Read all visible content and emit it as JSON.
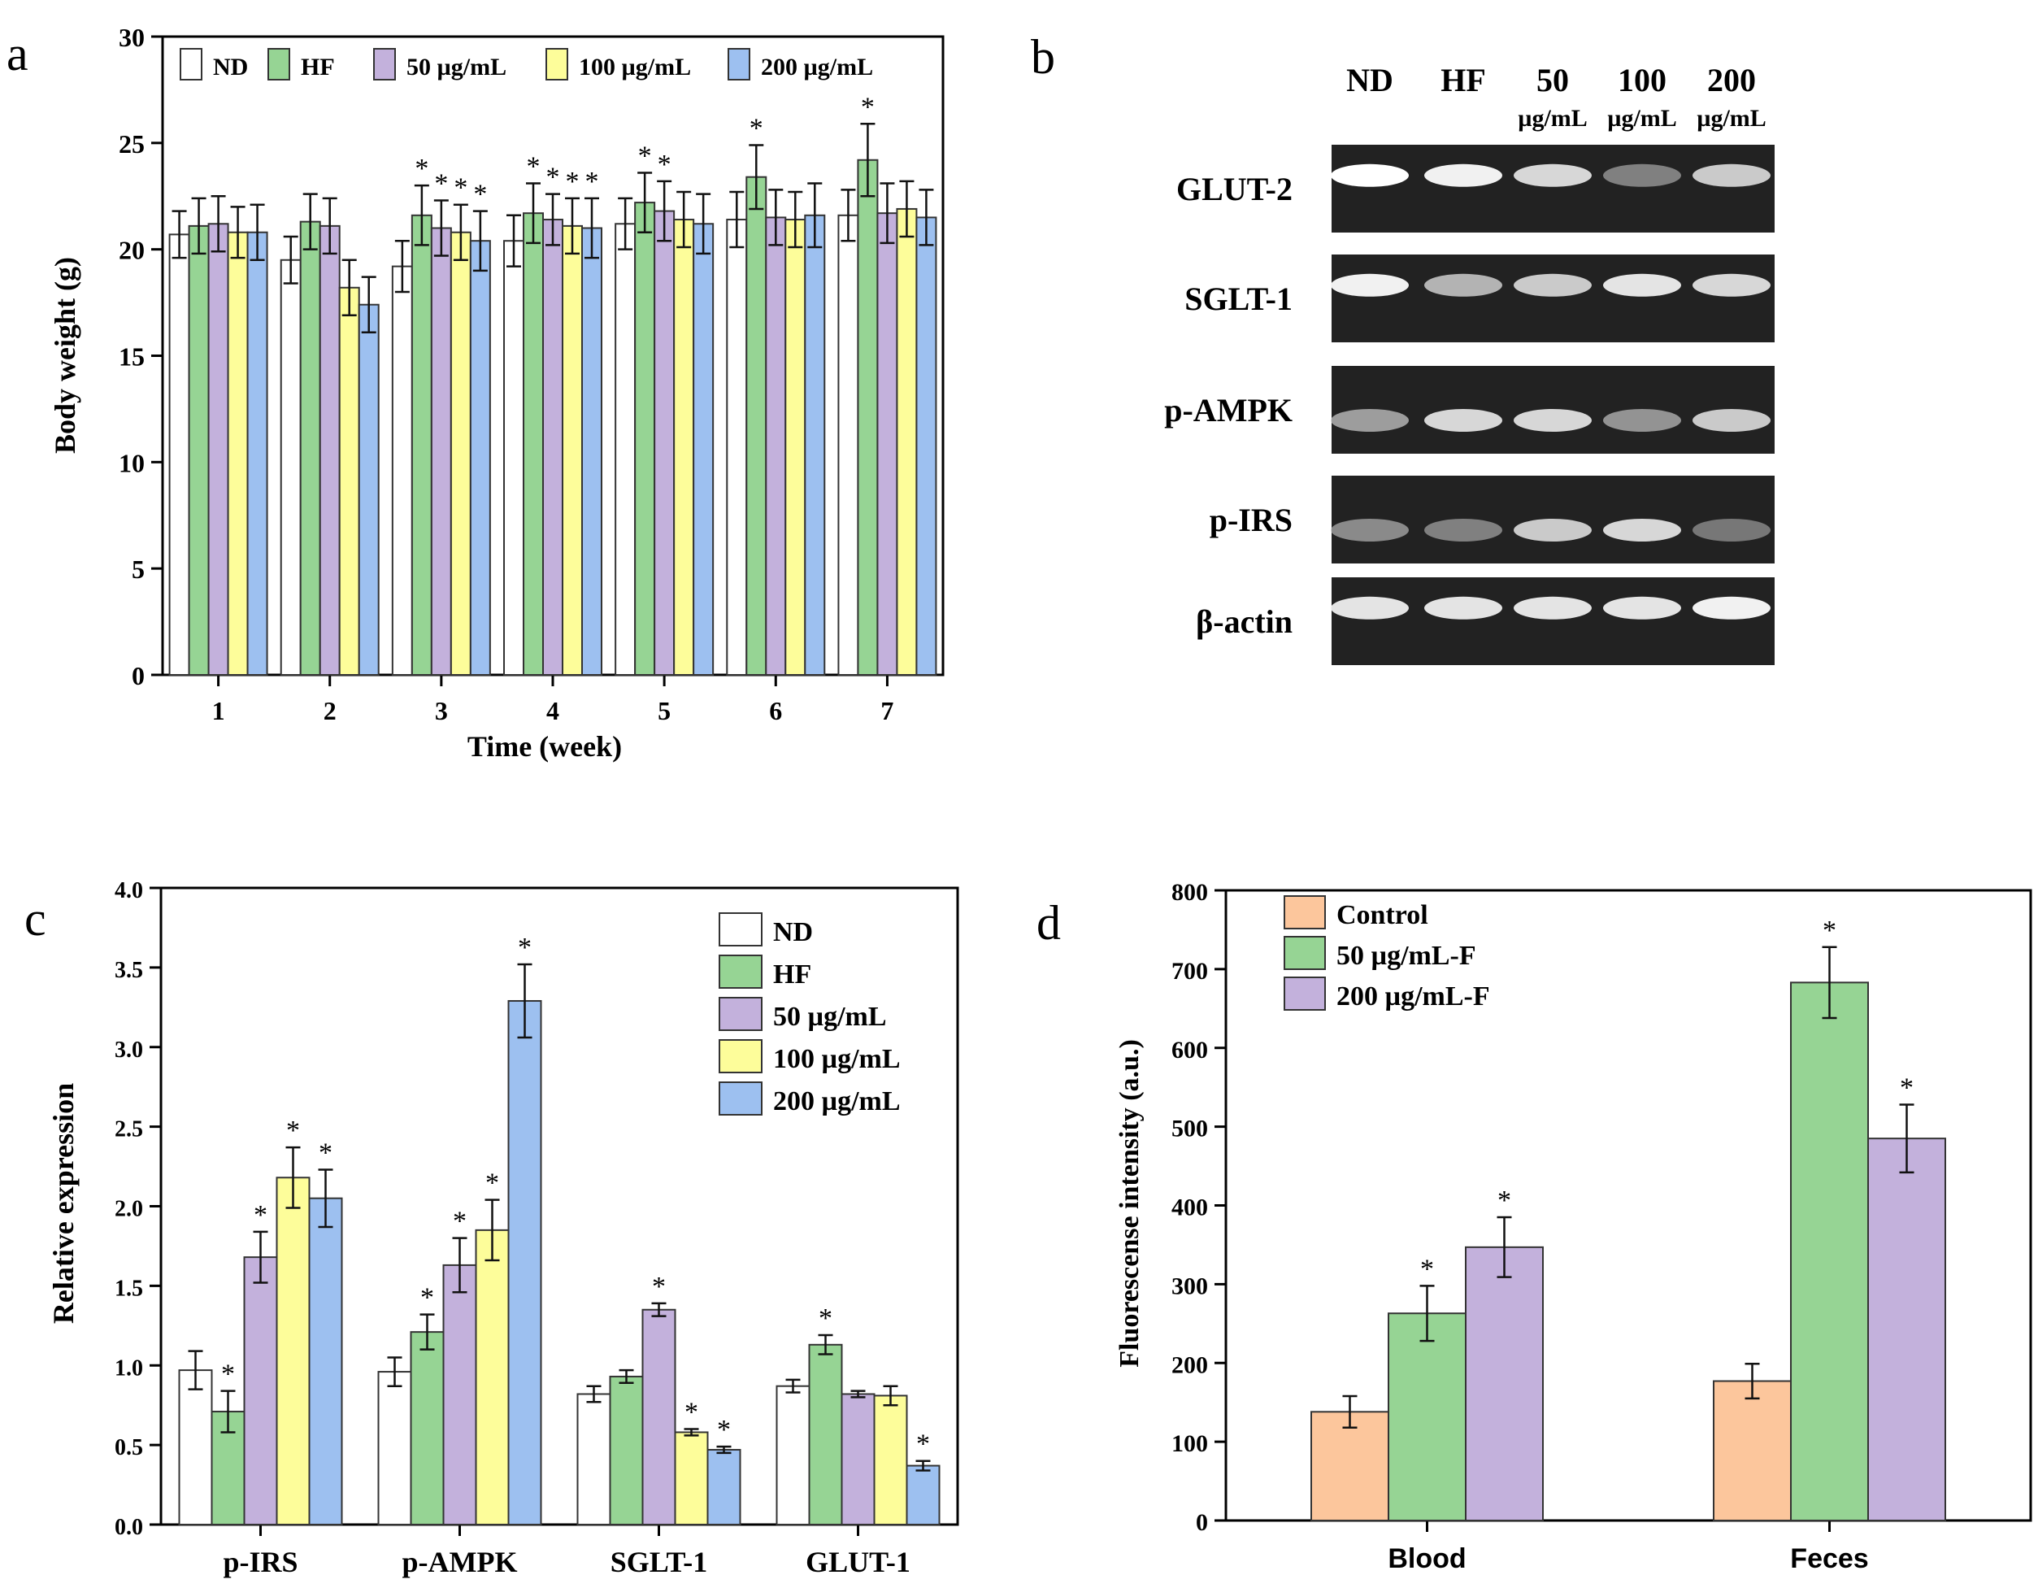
{
  "colors": {
    "ND": "#ffffff",
    "HF": "#96d494",
    "50ug": "#c3b1dc",
    "100ug": "#fdfd9a",
    "200ug": "#9dc0f0",
    "orange": "#fcc69c"
  },
  "panel_a": {
    "label": "a",
    "ylabel": "Body weight (g)",
    "xlabel": "Time (week)",
    "legend": [
      "ND",
      "HF",
      "50 µg/mL",
      "100 µg/mL",
      "200 µg/mL"
    ]
  },
  "panel_b": {
    "label": "b",
    "lanes": [
      {
        "top": "ND",
        "bottom": ""
      },
      {
        "top": "HF",
        "bottom": ""
      },
      {
        "top": "50",
        "bottom": "µg/mL"
      },
      {
        "top": "100",
        "bottom": "µg/mL"
      },
      {
        "top": "200",
        "bottom": "µg/mL"
      }
    ],
    "rows": [
      "GLUT-2",
      "SGLT-1",
      "p-AMPK",
      "p-IRS",
      "β-actin"
    ],
    "band_intensity": [
      [
        1.0,
        0.95,
        0.85,
        0.45,
        0.8
      ],
      [
        0.95,
        0.7,
        0.8,
        0.9,
        0.85
      ],
      [
        0.6,
        0.85,
        0.85,
        0.55,
        0.8
      ],
      [
        0.5,
        0.45,
        0.8,
        0.85,
        0.4
      ],
      [
        0.9,
        0.9,
        0.9,
        0.9,
        0.95
      ]
    ]
  },
  "panel_c": {
    "label": "c",
    "ylabel": "Relative expression"
  },
  "panel_d": {
    "label": "d",
    "ylabel": "Fluorescense intensity (a.u.)"
  },
  "chart_data": [
    {
      "id": "a",
      "type": "bar",
      "title": "",
      "xlabel": "Time (week)",
      "ylabel": "Body weight (g)",
      "ylim": [
        0,
        30
      ],
      "yticks": [
        "0",
        "5",
        "10",
        "15",
        "20",
        "25",
        "30"
      ],
      "categories": [
        "1",
        "2",
        "3",
        "4",
        "5",
        "6",
        "7"
      ],
      "series": [
        {
          "name": "ND",
          "values": [
            20.7,
            19.5,
            19.2,
            20.4,
            21.2,
            21.4,
            21.6
          ],
          "errors": [
            1.1,
            1.1,
            1.2,
            1.2,
            1.2,
            1.3,
            1.2
          ],
          "stars": [
            false,
            false,
            false,
            false,
            false,
            false,
            false
          ]
        },
        {
          "name": "HF",
          "values": [
            21.1,
            21.3,
            21.6,
            21.7,
            22.2,
            23.4,
            24.2
          ],
          "errors": [
            1.3,
            1.3,
            1.4,
            1.4,
            1.4,
            1.5,
            1.7
          ],
          "stars": [
            false,
            false,
            true,
            true,
            true,
            true,
            true
          ]
        },
        {
          "name": "50 µg/mL",
          "values": [
            21.2,
            21.1,
            21.0,
            21.4,
            21.8,
            21.5,
            21.7
          ],
          "errors": [
            1.3,
            1.3,
            1.3,
            1.2,
            1.4,
            1.3,
            1.4
          ],
          "stars": [
            false,
            false,
            true,
            true,
            true,
            false,
            false
          ]
        },
        {
          "name": "100 µg/mL",
          "values": [
            20.8,
            18.2,
            20.8,
            21.1,
            21.4,
            21.4,
            21.9
          ],
          "errors": [
            1.2,
            1.3,
            1.3,
            1.3,
            1.3,
            1.3,
            1.3
          ],
          "stars": [
            false,
            false,
            true,
            true,
            false,
            false,
            false
          ]
        },
        {
          "name": "200 µg/mL",
          "values": [
            20.8,
            17.4,
            20.4,
            21.0,
            21.2,
            21.6,
            21.5
          ],
          "errors": [
            1.3,
            1.3,
            1.4,
            1.4,
            1.4,
            1.5,
            1.3
          ],
          "stars": [
            false,
            false,
            true,
            true,
            false,
            false,
            false
          ]
        }
      ]
    },
    {
      "id": "c",
      "type": "bar",
      "title": "",
      "xlabel": "",
      "ylabel": "Relative expression",
      "ylim": [
        0,
        4
      ],
      "yticks": [
        "0.0",
        "0.5",
        "1.0",
        "1.5",
        "2.0",
        "2.5",
        "3.0",
        "3.5",
        "4.0"
      ],
      "categories": [
        "p-IRS",
        "p-AMPK",
        "SGLT-1",
        "GLUT-1"
      ],
      "series": [
        {
          "name": "ND",
          "values": [
            0.97,
            0.96,
            0.82,
            0.87
          ],
          "errors": [
            0.12,
            0.09,
            0.05,
            0.04
          ],
          "stars": [
            false,
            false,
            false,
            false
          ]
        },
        {
          "name": "HF",
          "values": [
            0.71,
            1.21,
            0.93,
            1.13
          ],
          "errors": [
            0.13,
            0.11,
            0.04,
            0.06
          ],
          "stars": [
            true,
            true,
            false,
            true
          ]
        },
        {
          "name": "50 µg/mL",
          "values": [
            1.68,
            1.63,
            1.35,
            0.82
          ],
          "errors": [
            0.16,
            0.17,
            0.04,
            0.02
          ],
          "stars": [
            true,
            true,
            true,
            false
          ]
        },
        {
          "name": "100 µg/mL",
          "values": [
            2.18,
            1.85,
            0.58,
            0.81
          ],
          "errors": [
            0.19,
            0.19,
            0.02,
            0.06
          ],
          "stars": [
            true,
            true,
            true,
            false
          ]
        },
        {
          "name": "200 µg/mL",
          "values": [
            2.05,
            3.29,
            0.47,
            0.37
          ],
          "errors": [
            0.18,
            0.23,
            0.02,
            0.03
          ],
          "stars": [
            true,
            true,
            true,
            true
          ]
        }
      ]
    },
    {
      "id": "d",
      "type": "bar",
      "title": "",
      "xlabel": "",
      "ylabel": "Fluorescense intensity (a.u.)",
      "ylim": [
        0,
        800
      ],
      "yticks": [
        "0",
        "100",
        "200",
        "300",
        "400",
        "500",
        "600",
        "700",
        "800"
      ],
      "categories": [
        "Blood",
        "Feces"
      ],
      "series": [
        {
          "name": "Control",
          "values": [
            138,
            177
          ],
          "errors": [
            20,
            22
          ],
          "stars": [
            false,
            false
          ]
        },
        {
          "name": "50 µg/mL-F",
          "values": [
            263,
            683
          ],
          "errors": [
            35,
            45
          ],
          "stars": [
            true,
            true
          ]
        },
        {
          "name": "200 µg/mL-F",
          "values": [
            347,
            485
          ],
          "errors": [
            38,
            43
          ],
          "stars": [
            true,
            true
          ]
        }
      ]
    }
  ]
}
